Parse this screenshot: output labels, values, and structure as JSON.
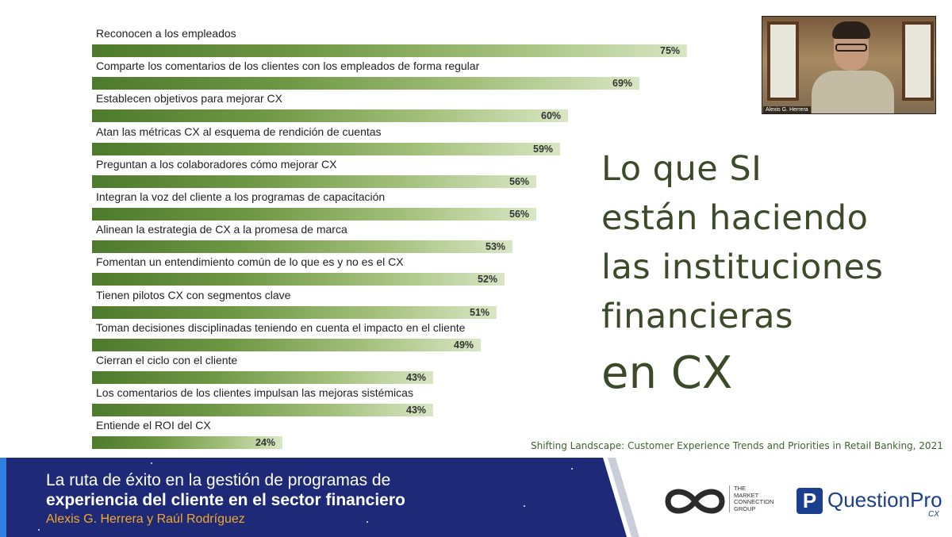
{
  "slide": {
    "headline_lines": [
      "Lo que SI",
      "están haciendo",
      "las instituciones",
      "financieras"
    ],
    "headline_big": "en CX",
    "source": "Shifting Landscape: Customer Experience Trends and Priorities in Retail Banking, 2021"
  },
  "chart_data": {
    "type": "bar",
    "orientation": "horizontal",
    "categories": [
      "Reconocen a los empleados",
      "Comparte los comentarios de los clientes con los empleados de forma regular",
      "Establecen objetivos para mejorar CX",
      "Atan las métricas CX al esquema de rendición de cuentas",
      "Preguntan a los colaboradores cómo mejorar CX",
      "Integran la voz del cliente a los programas de capacitación",
      "Alinean la estrategia de CX a la promesa de marca",
      "Fomentan un entendimiento común de lo que es y no es el CX",
      "Tienen pilotos CX con segmentos clave",
      "Toman decisiones disciplinadas teniendo en cuenta el impacto en el cliente",
      "Cierran el ciclo con el cliente",
      "Los comentarios de los clientes impulsan las mejoras sistémicas",
      "Entiende el ROI del CX"
    ],
    "values": [
      75,
      69,
      60,
      59,
      56,
      56,
      53,
      52,
      51,
      49,
      43,
      43,
      24
    ],
    "value_labels": [
      "75%",
      "69%",
      "60%",
      "59%",
      "56%",
      "56%",
      "53%",
      "52%",
      "51%",
      "49%",
      "43%",
      "43%",
      "24%"
    ],
    "bar_color": "#5f8a3a"
  },
  "webcam": {
    "name_tag": "Alexis G. Herrera"
  },
  "banner": {
    "line1": "La ruta de éxito en la gestión de programas de",
    "line2": "experiencia del cliente en el sector financiero",
    "line3": "Alexis G. Herrera y Raúl Rodríguez",
    "bg_color": "#1e2a78",
    "accent_color": "#f4a72a"
  },
  "logos": {
    "tmc_lines": [
      "THE",
      "MARKET",
      "CONNECTION",
      "GROUP"
    ],
    "qp_icon": "P",
    "qp_name": "QuestionPro",
    "qp_sub": "CX"
  }
}
